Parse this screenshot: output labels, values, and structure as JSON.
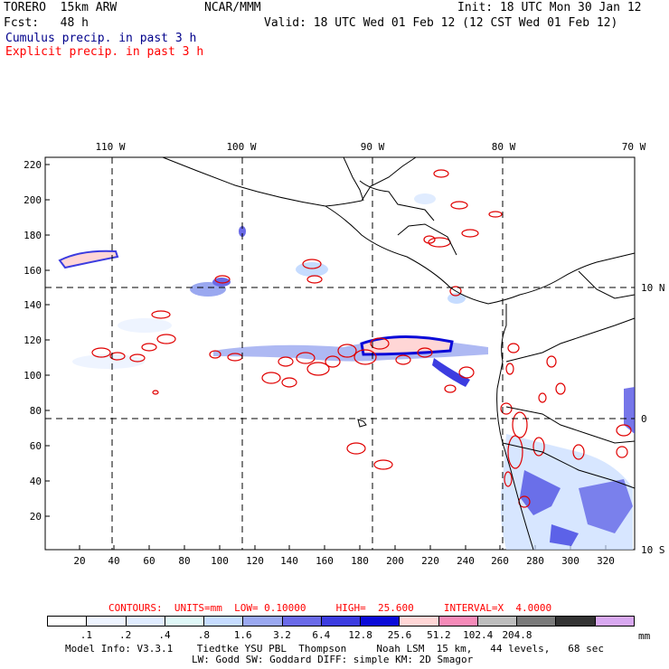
{
  "header": {
    "title_left": "TORERO  15km ARW",
    "center": "NCAR/MMM",
    "init": "Init: 18 UTC Mon 30 Jan 12",
    "fcst": "Fcst:   48 h",
    "valid": "Valid: 18 UTC Wed 01 Feb 12 (12 CST Wed 01 Feb 12)",
    "legend_cumulus": "Cumulus precip. in past 3 h",
    "legend_explicit": "Explicit precip. in past 3 h"
  },
  "map": {
    "lon_labels": [
      "110 W",
      "100 W",
      "90 W",
      "80 W",
      "70 W"
    ],
    "lat_labels": [
      "10 N",
      "0",
      "10 S"
    ],
    "y_ticks": [
      "220",
      "200",
      "180",
      "160",
      "140",
      "120",
      "100",
      "80",
      "60",
      "40",
      "20"
    ],
    "x_ticks": [
      "20",
      "40",
      "60",
      "80",
      "100",
      "120",
      "140",
      "160",
      "180",
      "200",
      "220",
      "240",
      "260",
      "280",
      "300",
      "320"
    ]
  },
  "contours_line": {
    "text": "CONTOURS:  UNITS=mm  LOW= 0.10000     HIGH=  25.600     INTERVAL=X  4.0000"
  },
  "colorbar": {
    "colors": [
      "#ffffff",
      "#eef4ff",
      "#e0ecff",
      "#dff7f7",
      "#c6dcff",
      "#9aa8f0",
      "#6a6ae8",
      "#3c3ce0",
      "#0a0ad8",
      "#ffd6d6",
      "#f58ab8",
      "#bdbdbd",
      "#7a7a7a",
      "#333333",
      "#d8a8f0"
    ],
    "labels": [
      ".1",
      ".2",
      ".4",
      ".8",
      "1.6",
      "3.2",
      "6.4",
      "12.8",
      "25.6",
      "51.2",
      "102.4",
      "204.8"
    ],
    "unit": "mm"
  },
  "footer": {
    "line1": "Model Info: V3.3.1    Tiedtke YSU PBL  Thompson     Noah LSM  15 km,   44 levels,   68 sec",
    "line2": "LW: Godd SW: Goddard DIFF: simple KM: 2D Smagor"
  }
}
